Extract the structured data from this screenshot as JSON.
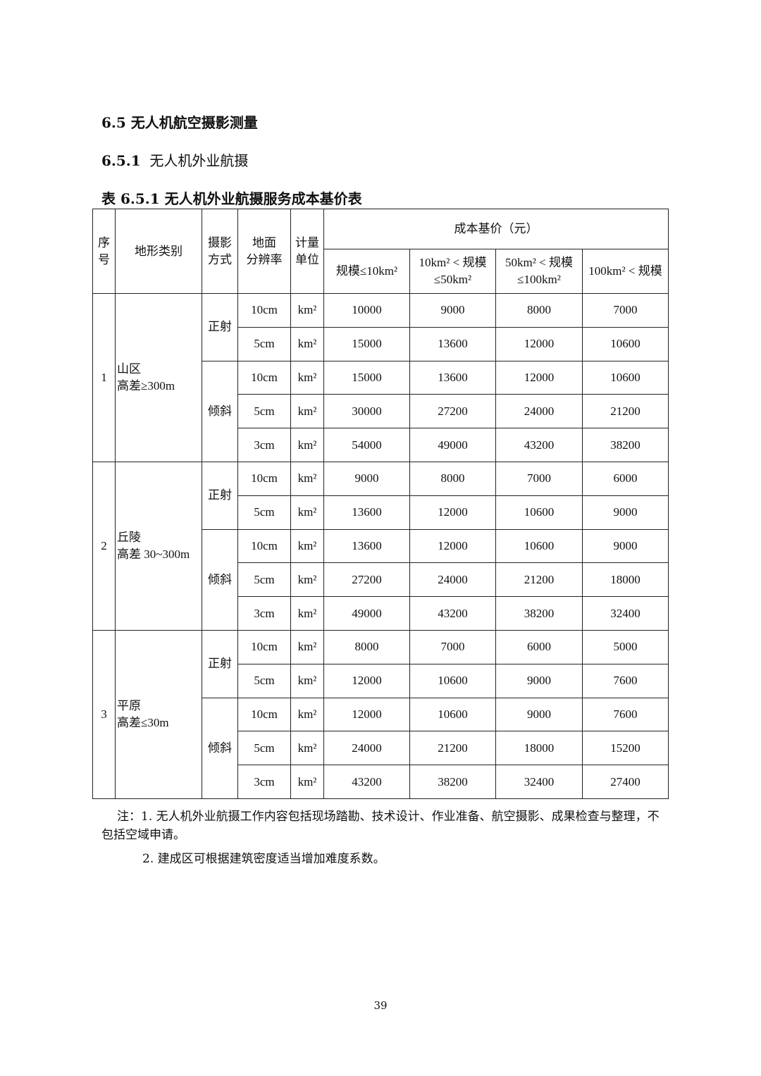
{
  "section_title": "6.5  无人机航空摄影测量",
  "subsection_number": "6.5.1",
  "subsection_title": "无人机外业航摄",
  "table_caption": "表 6.5.1    无人机外业航摄服务成本基价表",
  "table": {
    "headers": {
      "index": [
        "序",
        "号"
      ],
      "terrain": "地形类别",
      "mode": [
        "摄影",
        "方式"
      ],
      "resolution": [
        "地面",
        "分辨率"
      ],
      "unit": [
        "计量",
        "单位"
      ],
      "cost_group": "成本基价（元）",
      "scales": [
        [
          "规模≤10km²"
        ],
        [
          "10km² < 规模",
          "≤50km²"
        ],
        [
          "50km² < 规模",
          "≤100km²"
        ],
        [
          "100km² < 规模"
        ]
      ]
    },
    "groups": [
      {
        "index": "1",
        "terrain": [
          "山区",
          "高差≥300m"
        ],
        "modes": [
          {
            "name": "正射",
            "rows": [
              {
                "res": "10cm",
                "unit": "km²",
                "values": [
                  "10000",
                  "9000",
                  "8000",
                  "7000"
                ]
              },
              {
                "res": "5cm",
                "unit": "km²",
                "values": [
                  "15000",
                  "13600",
                  "12000",
                  "10600"
                ]
              }
            ]
          },
          {
            "name": "倾斜",
            "rows": [
              {
                "res": "10cm",
                "unit": "km²",
                "values": [
                  "15000",
                  "13600",
                  "12000",
                  "10600"
                ]
              },
              {
                "res": "5cm",
                "unit": "km²",
                "values": [
                  "30000",
                  "27200",
                  "24000",
                  "21200"
                ]
              },
              {
                "res": "3cm",
                "unit": "km²",
                "values": [
                  "54000",
                  "49000",
                  "43200",
                  "38200"
                ]
              }
            ]
          }
        ]
      },
      {
        "index": "2",
        "terrain": [
          "丘陵",
          "高差 30~300m"
        ],
        "modes": [
          {
            "name": "正射",
            "rows": [
              {
                "res": "10cm",
                "unit": "km²",
                "values": [
                  "9000",
                  "8000",
                  "7000",
                  "6000"
                ]
              },
              {
                "res": "5cm",
                "unit": "km²",
                "values": [
                  "13600",
                  "12000",
                  "10600",
                  "9000"
                ]
              }
            ]
          },
          {
            "name": "倾斜",
            "rows": [
              {
                "res": "10cm",
                "unit": "km²",
                "values": [
                  "13600",
                  "12000",
                  "10600",
                  "9000"
                ]
              },
              {
                "res": "5cm",
                "unit": "km²",
                "values": [
                  "27200",
                  "24000",
                  "21200",
                  "18000"
                ]
              },
              {
                "res": "3cm",
                "unit": "km²",
                "values": [
                  "49000",
                  "43200",
                  "38200",
                  "32400"
                ]
              }
            ]
          }
        ]
      },
      {
        "index": "3",
        "terrain": [
          "平原",
          "高差≤30m"
        ],
        "modes": [
          {
            "name": "正射",
            "rows": [
              {
                "res": "10cm",
                "unit": "km²",
                "values": [
                  "8000",
                  "7000",
                  "6000",
                  "5000"
                ]
              },
              {
                "res": "5cm",
                "unit": "km²",
                "values": [
                  "12000",
                  "10600",
                  "9000",
                  "7600"
                ]
              }
            ]
          },
          {
            "name": "倾斜",
            "rows": [
              {
                "res": "10cm",
                "unit": "km²",
                "values": [
                  "12000",
                  "10600",
                  "9000",
                  "7600"
                ]
              },
              {
                "res": "5cm",
                "unit": "km²",
                "values": [
                  "24000",
                  "21200",
                  "18000",
                  "15200"
                ]
              },
              {
                "res": "3cm",
                "unit": "km²",
                "values": [
                  "43200",
                  "38200",
                  "32400",
                  "27400"
                ]
              }
            ]
          }
        ]
      }
    ]
  },
  "notes": [
    "注：1. 无人机外业航摄工作内容包括现场踏勘、技术设计、作业准备、航空摄影、成果检查与整理，不包括空域申请。",
    "2. 建成区可根据建筑密度适当增加难度系数。"
  ],
  "page_number": "39"
}
